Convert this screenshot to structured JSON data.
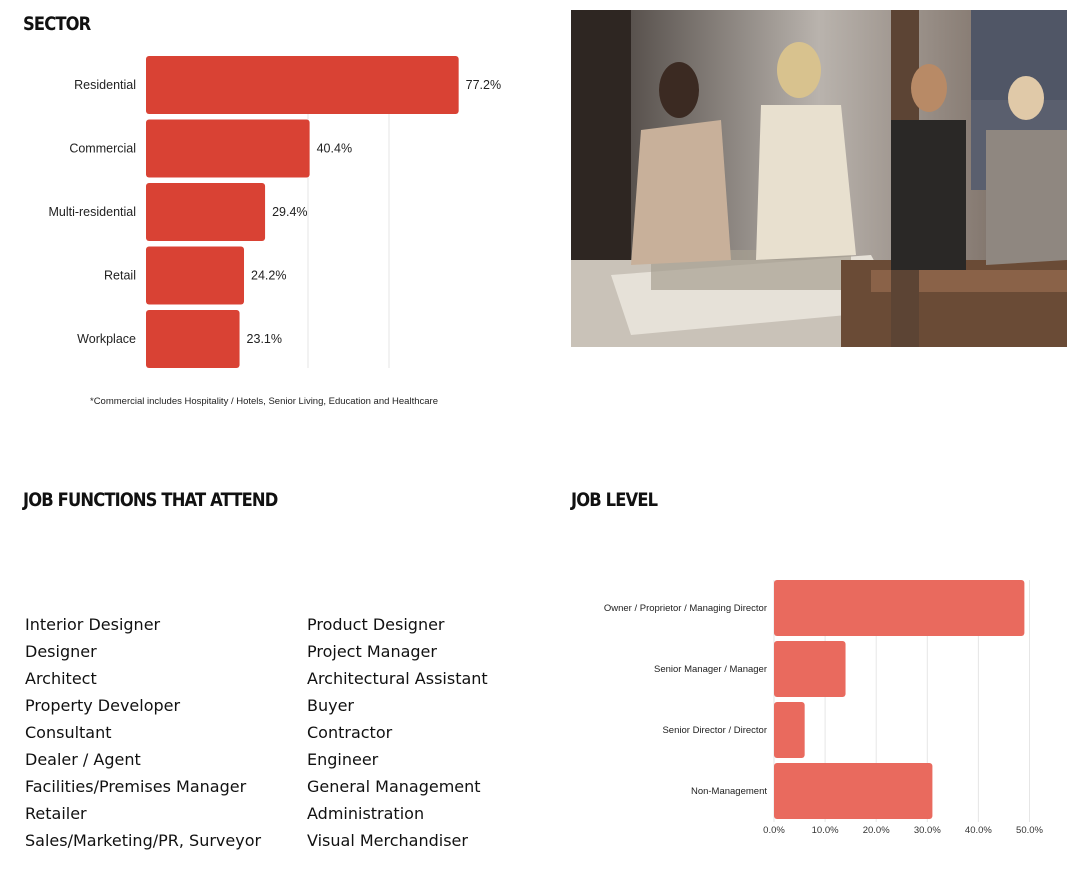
{
  "sector": {
    "heading": "SECTOR",
    "footnote": "*Commercial includes Hospitality / Hotels, Senior Living, Education and Healthcare"
  },
  "functions": {
    "heading": "JOB FUNCTIONS THAT ATTEND",
    "left": [
      "Interior Designer",
      "Designer",
      "Architect",
      "Property Developer",
      "Consultant",
      "Dealer / Agent",
      "Facilities/Premises Manager",
      "Retailer",
      "Sales/Marketing/PR, Surveyor"
    ],
    "right": [
      "Product Designer",
      "Project Manager",
      "Architectural Assistant",
      "Buyer",
      "Contractor",
      "Engineer",
      "General Management",
      "Administration",
      "Visual Merchandiser"
    ]
  },
  "level": {
    "heading": "JOB LEVEL"
  },
  "chart_data": [
    {
      "type": "bar",
      "orientation": "horizontal",
      "categories": [
        "Residential",
        "Commercial",
        "Multi-residential",
        "Retail",
        "Workplace"
      ],
      "values": [
        77.2,
        40.4,
        29.4,
        24.2,
        23.1
      ],
      "value_labels": [
        "77.2%",
        "40.4%",
        "29.4%",
        "24.2%",
        "23.1%"
      ],
      "color": "#d94234",
      "xlim": [
        0,
        100
      ],
      "grid": true
    },
    {
      "type": "bar",
      "orientation": "horizontal",
      "categories": [
        "Owner / Proprietor / Managing Director",
        "Senior Manager / Manager",
        "Senior Director / Director",
        "Non-Management"
      ],
      "values": [
        49.0,
        14.0,
        6.0,
        31.0
      ],
      "color": "#e96a5e",
      "xlim": [
        0,
        50
      ],
      "xticks": [
        "0.0%",
        "10.0%",
        "20.0%",
        "30.0%",
        "40.0%",
        "50.0%"
      ],
      "grid": true
    }
  ]
}
